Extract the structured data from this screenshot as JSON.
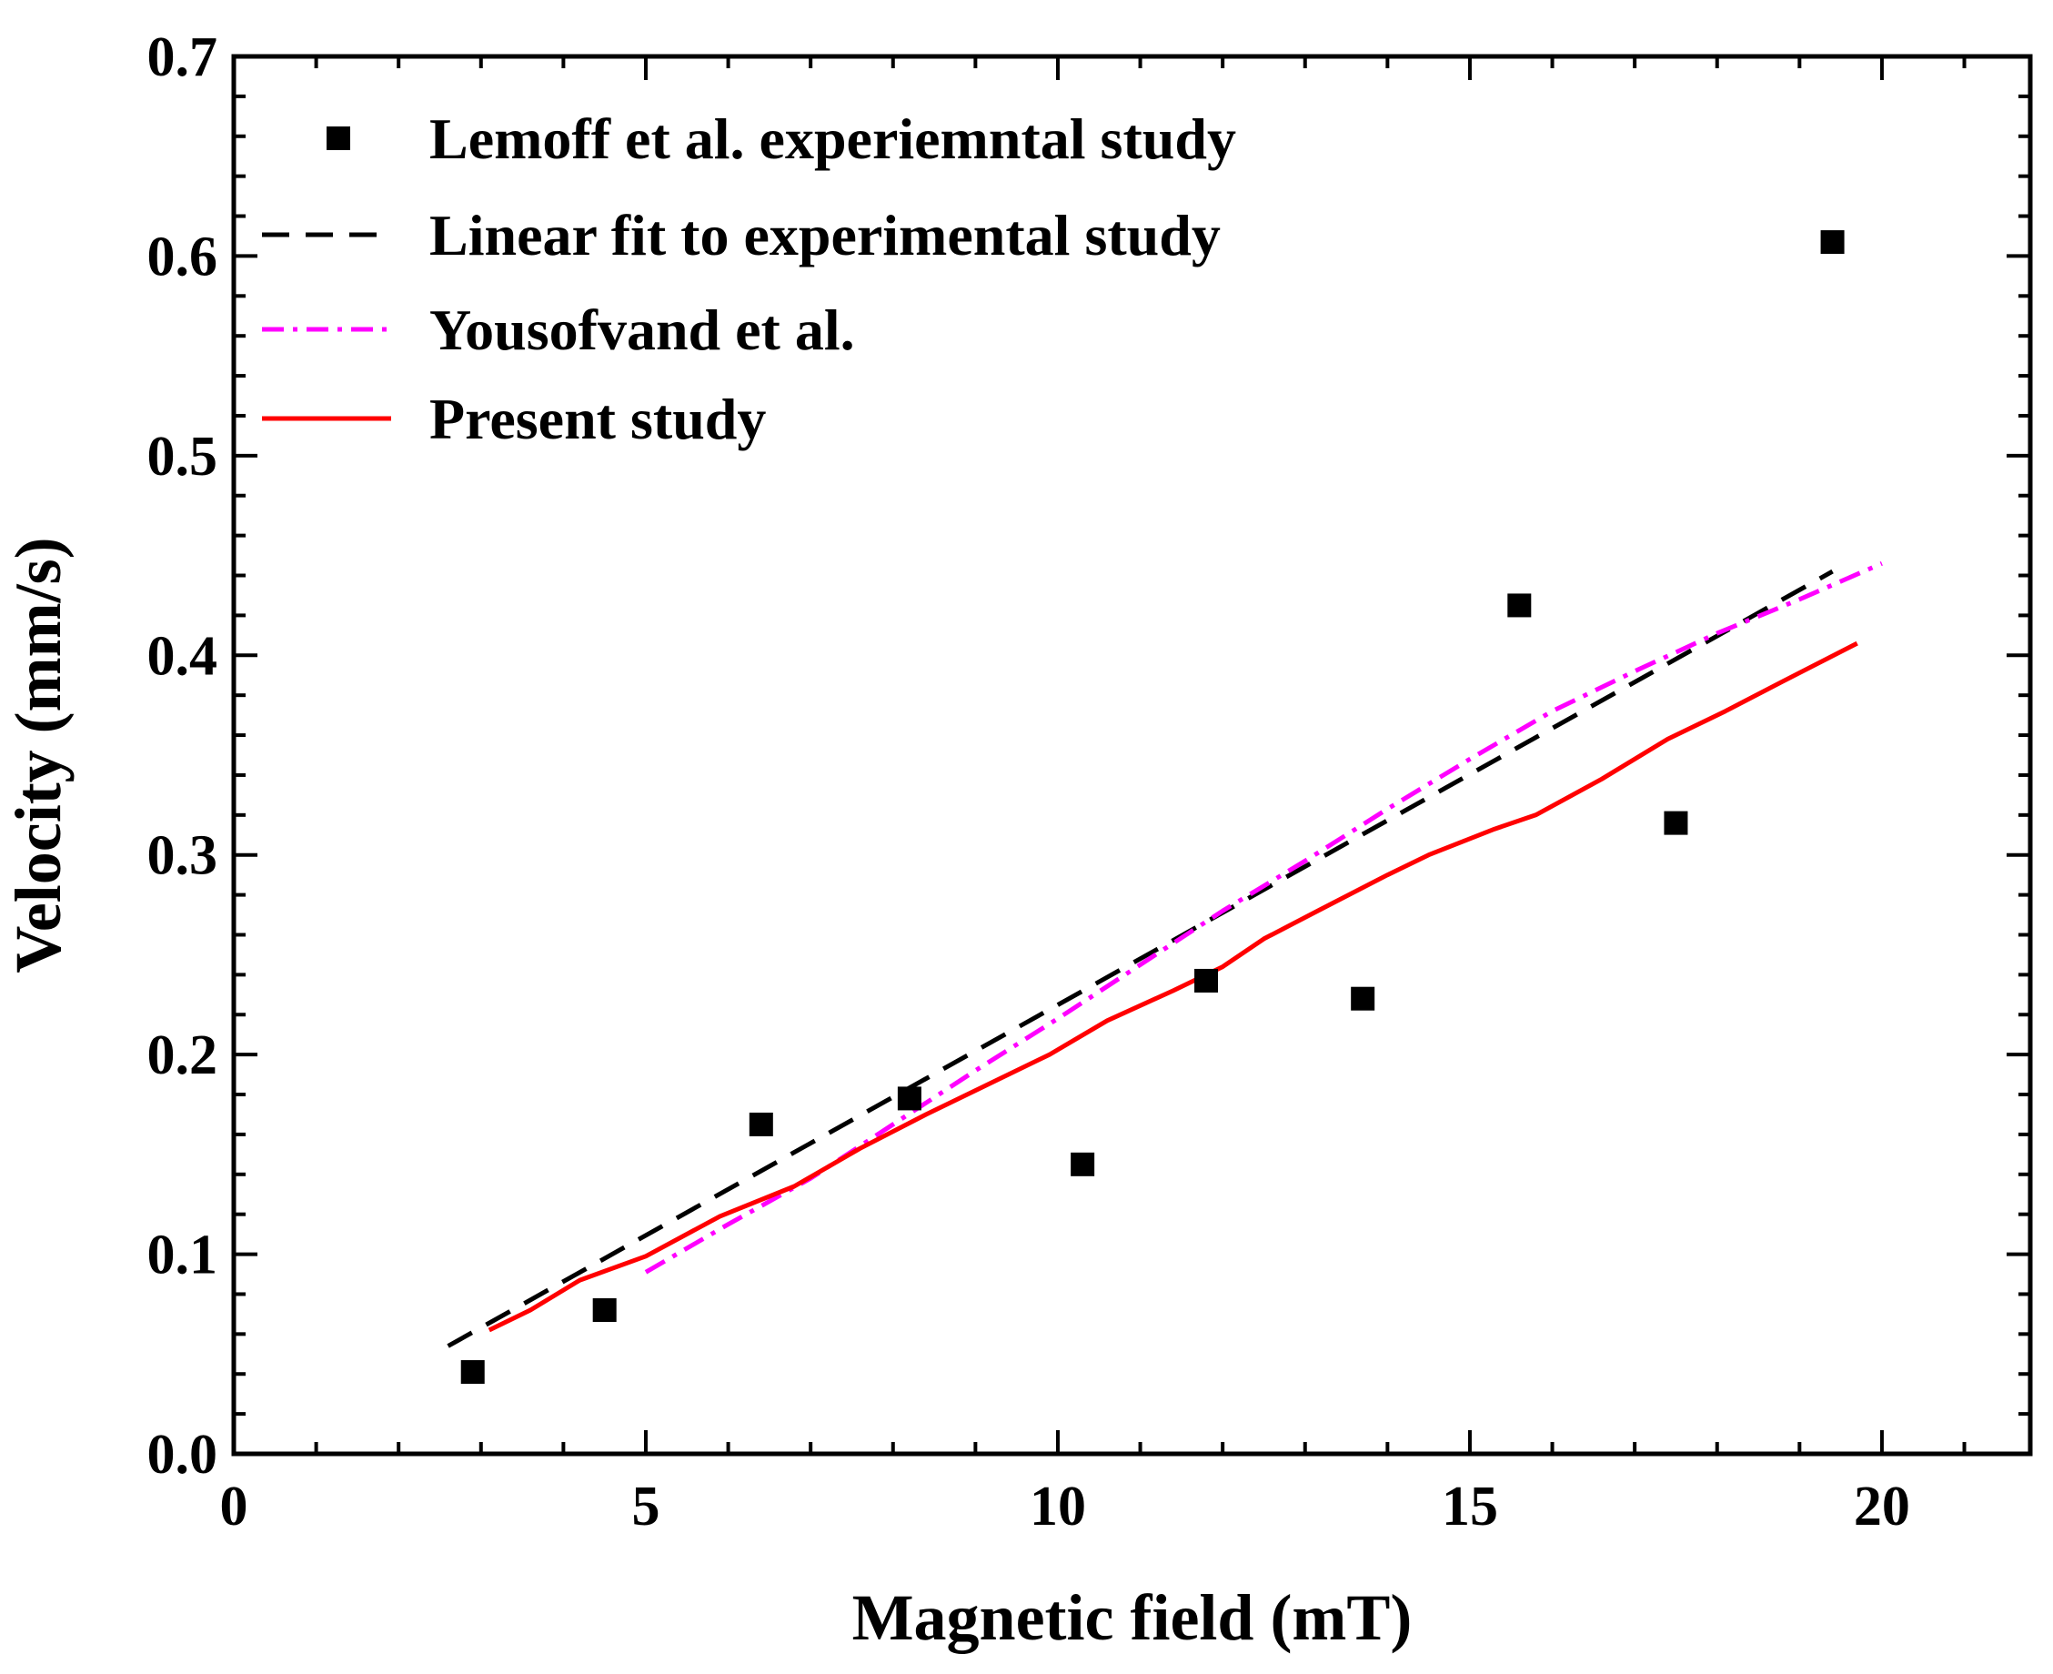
{
  "chart_data": {
    "type": "scatter",
    "xlabel": "Magnetic field (mT)",
    "ylabel": "Velocity (mm/s)",
    "xlim": [
      0,
      21.8
    ],
    "ylim": [
      0,
      0.7
    ],
    "x_ticks": [
      0,
      5,
      10,
      15,
      20
    ],
    "x_tick_labels": [
      "0",
      "5",
      "10",
      "15",
      "20"
    ],
    "y_ticks": [
      0.0,
      0.1,
      0.2,
      0.3,
      0.4,
      0.5,
      0.6,
      0.7
    ],
    "y_tick_labels": [
      "0.0",
      "0.1",
      "0.2",
      "0.3",
      "0.4",
      "0.5",
      "0.6",
      "0.7"
    ],
    "x_minor_step": 1,
    "y_minor_step": 0.02,
    "legend_position": "top-left",
    "series": [
      {
        "name": "Lemoff et al. experiemntal study",
        "kind": "scatter",
        "color": "#000000",
        "marker": "square",
        "x": [
          2.9,
          4.5,
          6.4,
          8.2,
          10.3,
          11.8,
          13.7,
          15.6,
          17.5,
          19.4
        ],
        "y": [
          0.041,
          0.072,
          0.165,
          0.178,
          0.145,
          0.237,
          0.228,
          0.425,
          0.316,
          0.607
        ]
      },
      {
        "name": "Linear fit to experimental study",
        "kind": "line",
        "color": "#000000",
        "dash": "dashed",
        "x": [
          2.6,
          19.4
        ],
        "y": [
          0.054,
          0.442
        ]
      },
      {
        "name": "Yousofvand et al.",
        "kind": "line",
        "color": "#ff00ff",
        "dash": "dashdot",
        "x": [
          5.0,
          6.0,
          7.0,
          8.0,
          9.0,
          10.0,
          11.0,
          12.0,
          13.0,
          14.0,
          15.0,
          16.0,
          17.0,
          18.0,
          19.0,
          20.0
        ],
        "y": [
          0.091,
          0.115,
          0.138,
          0.165,
          0.192,
          0.218,
          0.245,
          0.272,
          0.297,
          0.323,
          0.348,
          0.372,
          0.392,
          0.411,
          0.428,
          0.446
        ]
      },
      {
        "name": "Present study",
        "kind": "line",
        "color": "#ff0000",
        "dash": "solid",
        "x": [
          3.1,
          3.6,
          4.2,
          5.0,
          5.9,
          6.8,
          7.6,
          8.4,
          9.1,
          9.9,
          10.6,
          11.4,
          12.0,
          12.5,
          13.2,
          14.0,
          14.5,
          15.3,
          15.8,
          16.6,
          17.4,
          18.1,
          18.8,
          19.7
        ],
        "y": [
          0.062,
          0.072,
          0.087,
          0.099,
          0.119,
          0.134,
          0.153,
          0.17,
          0.184,
          0.2,
          0.217,
          0.232,
          0.244,
          0.258,
          0.273,
          0.29,
          0.3,
          0.313,
          0.32,
          0.338,
          0.358,
          0.372,
          0.387,
          0.406
        ]
      }
    ]
  }
}
